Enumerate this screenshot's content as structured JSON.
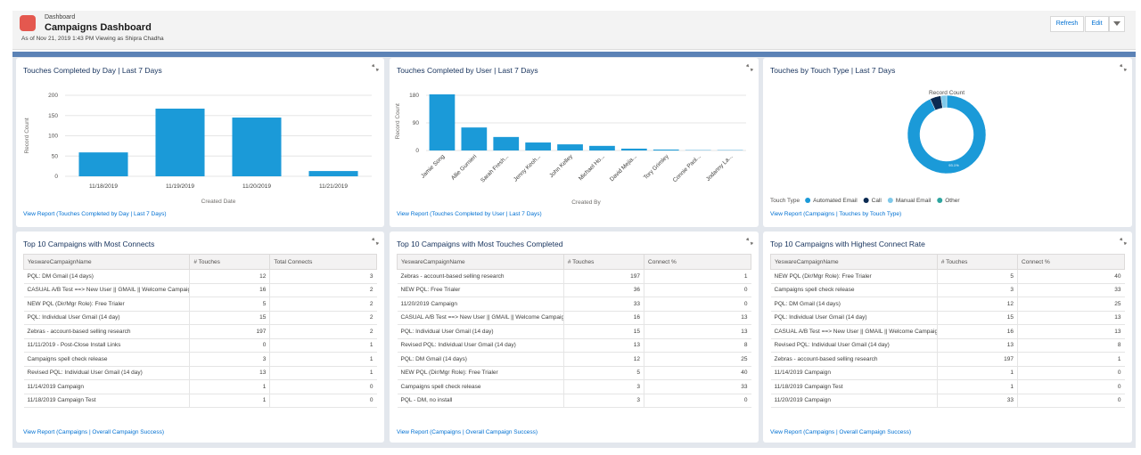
{
  "header": {
    "breadcrumb": "Dashboard",
    "title": "Campaigns Dashboard",
    "subtitle": "As of Nov 21, 2019 1:43 PM Viewing as Shipra Chadha",
    "buttons": [
      "Refresh",
      "Edit"
    ]
  },
  "chart_data": [
    {
      "type": "bar",
      "title": "Touches Completed by Day | Last 7 Days",
      "categories": [
        "11/18/2019",
        "11/19/2019",
        "11/20/2019",
        "11/21/2019"
      ],
      "values": [
        59,
        167,
        145,
        13
      ],
      "color": "#1b9ad8",
      "xlabel": "Created Date",
      "ylabel": "Record Count",
      "ylim": [
        0,
        200
      ],
      "yticks": [
        0,
        50,
        100,
        150,
        200
      ],
      "grid": true,
      "link": "View Report (Touches Completed by Day | Last 7 Days)"
    },
    {
      "type": "bar",
      "title": "Touches Completed by User | Last 7 Days",
      "categories": [
        "Jamie Song",
        "Allie Gurnieri",
        "Sarah Fresh...",
        "Jenny Keoh...",
        "John Kelley",
        "Michael Ho...",
        "David Mejia...",
        "Tory Grimley",
        "Connie Paol...",
        "Jodanny La..."
      ],
      "values": [
        183,
        75,
        44,
        26,
        20,
        15,
        6,
        3,
        1,
        1
      ],
      "color": "#1b9ad8",
      "xlabel": "Created By",
      "ylabel": "Record Count",
      "ylim": [
        0,
        190
      ],
      "yticks": [
        0,
        90,
        180
      ],
      "grid": true,
      "link": "View Report (Touches Completed by User | Last 7 Days)"
    },
    {
      "type": "donut",
      "title": "Touches by Touch Type | Last 7 Days",
      "subtitle": "Record Count",
      "legend_title": "Touch Type",
      "categories": [
        "Automated Email",
        "Call",
        "Manual Email",
        "Other"
      ],
      "values": [
        93.1,
        4.5,
        2.4,
        0
      ],
      "value_labels": [
        "93.1%",
        null,
        null,
        null
      ],
      "colors": [
        "#1b9ad8",
        "#0b2a52",
        "#7fc9ea",
        "#2ea59f"
      ],
      "link": "View Report (Campaigns | Touches by Touch Type)"
    }
  ],
  "tables": [
    {
      "title": "Top 10 Campaigns with Most Connects",
      "columns": [
        "YeswareCampaignName",
        "# Touches",
        "Total Connects"
      ],
      "rows": [
        [
          "PQL: DM Gmail (14 days)",
          12,
          3
        ],
        [
          "CASUAL A/B Test ==> New User || GMAIL || Welcome Campaign",
          16,
          2
        ],
        [
          "NEW PQL (Dir/Mgr Role): Free Trialer",
          5,
          2
        ],
        [
          "PQL: Individual User Gmail (14 day)",
          15,
          2
        ],
        [
          "Zebras - account-based selling research",
          197,
          2
        ],
        [
          "11/11/2019 - Post-Close Install Links",
          0,
          1
        ],
        [
          "Campaigns spell check release",
          3,
          1
        ],
        [
          "Revised PQL: Individual User Gmail (14 day)",
          13,
          1
        ],
        [
          "11/14/2019 Campaign",
          1,
          0
        ],
        [
          "11/18/2019 Campaign Test",
          1,
          0
        ]
      ],
      "link": "View Report (Campaigns | Overall Campaign Success)"
    },
    {
      "title": "Top 10 Campaigns with Most Touches Completed",
      "columns": [
        "YeswareCampaignName",
        "# Touches",
        "Connect %"
      ],
      "rows": [
        [
          "Zebras - account-based selling research",
          197,
          1
        ],
        [
          "NEW PQL: Free Trialer",
          36,
          0
        ],
        [
          "11/20/2019 Campaign",
          33,
          0
        ],
        [
          "CASUAL A/B Test ==> New User || GMAIL || Welcome Campaign",
          16,
          13
        ],
        [
          "PQL: Individual User Gmail (14 day)",
          15,
          13
        ],
        [
          "Revised PQL: Individual User Gmail (14 day)",
          13,
          8
        ],
        [
          "PQL: DM Gmail (14 days)",
          12,
          25
        ],
        [
          "NEW PQL (Dir/Mgr Role): Free Trialer",
          5,
          40
        ],
        [
          "Campaigns spell check release",
          3,
          33
        ],
        [
          "PQL - DM, no install",
          3,
          0
        ]
      ],
      "link": "View Report (Campaigns | Overall Campaign Success)"
    },
    {
      "title": "Top 10 Campaigns with Highest Connect Rate",
      "columns": [
        "YeswareCampaignName",
        "# Touches",
        "Connect %"
      ],
      "rows": [
        [
          "NEW PQL (Dir/Mgr Role): Free Trialer",
          5,
          40
        ],
        [
          "Campaigns spell check release",
          3,
          33
        ],
        [
          "PQL: DM Gmail (14 days)",
          12,
          25
        ],
        [
          "PQL: Individual User Gmail (14 day)",
          15,
          13
        ],
        [
          "CASUAL A/B Test ==> New User || GMAIL || Welcome Campaign",
          16,
          13
        ],
        [
          "Revised PQL: Individual User Gmail (14 day)",
          13,
          8
        ],
        [
          "Zebras - account-based selling research",
          197,
          1
        ],
        [
          "11/14/2019 Campaign",
          1,
          0
        ],
        [
          "11/18/2019 Campaign Test",
          1,
          0
        ],
        [
          "11/20/2019 Campaign",
          33,
          0
        ]
      ],
      "link": "View Report (Campaigns | Overall Campaign Success)"
    }
  ]
}
